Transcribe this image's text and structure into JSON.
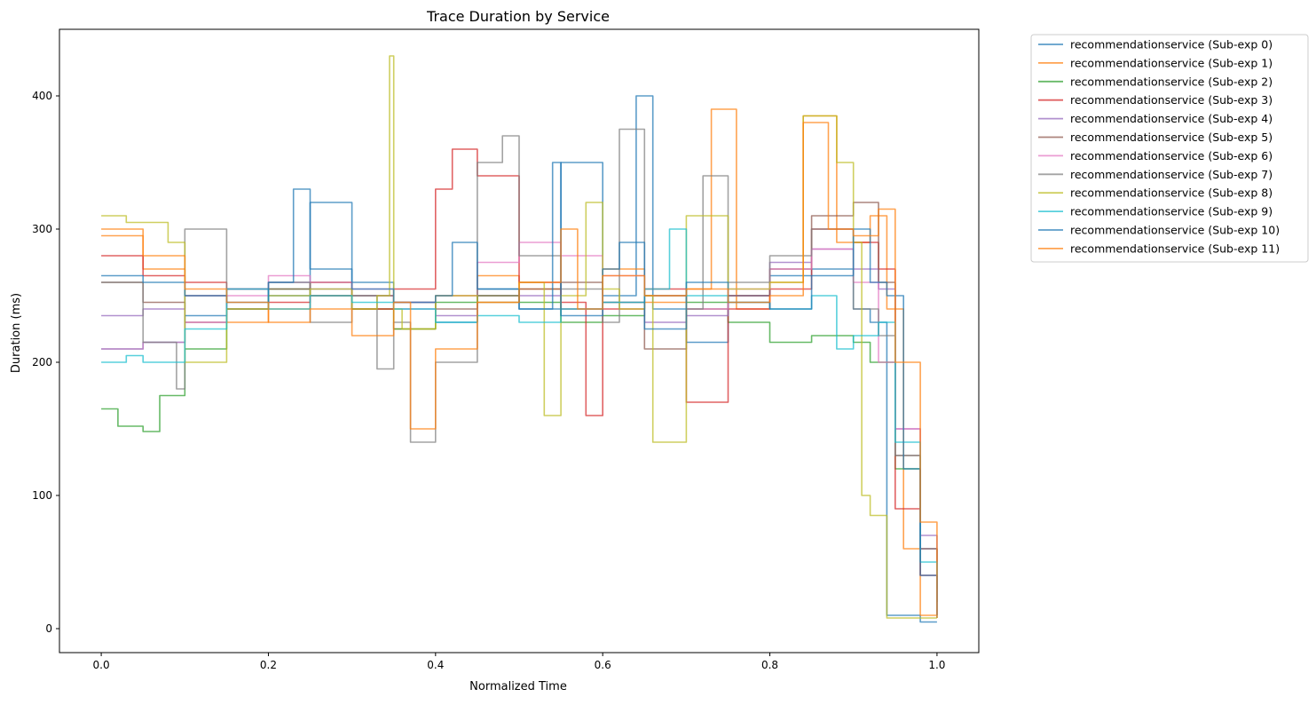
{
  "chart_data": {
    "type": "line",
    "title": "Trace Duration by Service",
    "xlabel": "Normalized Time",
    "ylabel": "Duration (ms)",
    "xlim": [
      -0.05,
      1.05
    ],
    "ylim": [
      -18,
      450
    ],
    "x_ticks": [
      0.0,
      0.2,
      0.4,
      0.6,
      0.8,
      1.0
    ],
    "x_tick_labels": [
      "0.0",
      "0.2",
      "0.4",
      "0.6",
      "0.8",
      "1.0"
    ],
    "y_ticks": [
      0,
      100,
      200,
      300,
      400
    ],
    "y_tick_labels": [
      "0",
      "100",
      "200",
      "300",
      "400"
    ],
    "grid": false,
    "legend_position": "outside-top-right",
    "series": [
      {
        "name": "recommendationservice (Sub-exp 0)",
        "color": "#1f77b4",
        "x": [
          0.0,
          0.05,
          0.1,
          0.15,
          0.2,
          0.25,
          0.3,
          0.35,
          0.4,
          0.45,
          0.5,
          0.55,
          0.6,
          0.64,
          0.66,
          0.7,
          0.75,
          0.8,
          0.85,
          0.9,
          0.92,
          0.94,
          0.96,
          0.98,
          1.0
        ],
        "y": [
          210,
          215,
          235,
          255,
          250,
          320,
          260,
          245,
          230,
          255,
          240,
          350,
          250,
          400,
          240,
          215,
          250,
          265,
          270,
          240,
          230,
          10,
          10,
          5,
          5
        ]
      },
      {
        "name": "recommendationservice (Sub-exp 1)",
        "color": "#ff7f0e",
        "x": [
          0.0,
          0.05,
          0.1,
          0.15,
          0.2,
          0.25,
          0.3,
          0.35,
          0.4,
          0.45,
          0.5,
          0.55,
          0.6,
          0.65,
          0.7,
          0.73,
          0.76,
          0.8,
          0.84,
          0.88,
          0.92,
          0.94,
          0.96,
          0.98,
          1.0
        ],
        "y": [
          300,
          270,
          250,
          230,
          240,
          260,
          240,
          225,
          250,
          265,
          255,
          240,
          270,
          245,
          255,
          390,
          240,
          260,
          385,
          290,
          310,
          240,
          60,
          10,
          8
        ]
      },
      {
        "name": "recommendationservice (Sub-exp 2)",
        "color": "#2ca02c",
        "x": [
          0.0,
          0.02,
          0.05,
          0.07,
          0.1,
          0.15,
          0.2,
          0.25,
          0.3,
          0.35,
          0.4,
          0.45,
          0.5,
          0.55,
          0.6,
          0.65,
          0.7,
          0.75,
          0.8,
          0.85,
          0.9,
          0.92,
          0.95,
          0.98,
          1.0
        ],
        "y": [
          165,
          152,
          148,
          175,
          210,
          240,
          255,
          250,
          240,
          225,
          245,
          250,
          245,
          230,
          235,
          250,
          245,
          230,
          215,
          220,
          215,
          200,
          120,
          60,
          20
        ]
      },
      {
        "name": "recommendationservice (Sub-exp 3)",
        "color": "#d62728",
        "x": [
          0.0,
          0.05,
          0.1,
          0.15,
          0.2,
          0.25,
          0.3,
          0.35,
          0.4,
          0.42,
          0.45,
          0.5,
          0.55,
          0.58,
          0.6,
          0.65,
          0.7,
          0.75,
          0.8,
          0.85,
          0.9,
          0.93,
          0.95,
          0.98,
          1.0
        ],
        "y": [
          280,
          265,
          260,
          255,
          245,
          250,
          240,
          255,
          330,
          360,
          340,
          260,
          245,
          160,
          240,
          255,
          170,
          240,
          255,
          300,
          290,
          270,
          90,
          40,
          10
        ]
      },
      {
        "name": "recommendationservice (Sub-exp 4)",
        "color": "#9467bd",
        "x": [
          0.0,
          0.05,
          0.1,
          0.15,
          0.2,
          0.25,
          0.3,
          0.35,
          0.4,
          0.45,
          0.5,
          0.55,
          0.6,
          0.65,
          0.7,
          0.75,
          0.8,
          0.85,
          0.9,
          0.93,
          0.95,
          0.98,
          1.0
        ],
        "y": [
          235,
          240,
          250,
          255,
          260,
          255,
          250,
          240,
          235,
          245,
          250,
          240,
          245,
          230,
          235,
          250,
          275,
          285,
          270,
          255,
          150,
          70,
          20
        ]
      },
      {
        "name": "recommendationservice (Sub-exp 5)",
        "color": "#8c564b",
        "x": [
          0.0,
          0.05,
          0.1,
          0.15,
          0.2,
          0.25,
          0.3,
          0.35,
          0.4,
          0.45,
          0.5,
          0.55,
          0.6,
          0.65,
          0.7,
          0.75,
          0.8,
          0.85,
          0.9,
          0.93,
          0.95,
          0.98,
          1.0
        ],
        "y": [
          260,
          245,
          230,
          240,
          255,
          260,
          250,
          245,
          240,
          250,
          255,
          260,
          245,
          210,
          240,
          250,
          270,
          310,
          320,
          260,
          130,
          60,
          50
        ]
      },
      {
        "name": "recommendationservice (Sub-exp 6)",
        "color": "#e377c2",
        "x": [
          0.0,
          0.05,
          0.1,
          0.15,
          0.2,
          0.25,
          0.3,
          0.35,
          0.4,
          0.45,
          0.5,
          0.55,
          0.6,
          0.65,
          0.7,
          0.75,
          0.8,
          0.85,
          0.9,
          0.93,
          0.95,
          0.98,
          1.0
        ],
        "y": [
          210,
          215,
          230,
          250,
          265,
          260,
          255,
          245,
          250,
          275,
          290,
          280,
          265,
          250,
          240,
          255,
          270,
          285,
          260,
          200,
          150,
          60,
          10
        ]
      },
      {
        "name": "recommendationservice (Sub-exp 7)",
        "color": "#7f7f7f",
        "x": [
          0.0,
          0.05,
          0.09,
          0.1,
          0.15,
          0.2,
          0.25,
          0.3,
          0.33,
          0.35,
          0.37,
          0.4,
          0.45,
          0.48,
          0.5,
          0.55,
          0.6,
          0.62,
          0.65,
          0.7,
          0.72,
          0.75,
          0.8,
          0.85,
          0.9,
          0.93,
          0.95,
          0.98,
          1.0
        ],
        "y": [
          260,
          215,
          180,
          300,
          240,
          260,
          230,
          250,
          195,
          230,
          140,
          200,
          350,
          370,
          280,
          255,
          230,
          375,
          250,
          240,
          340,
          260,
          280,
          300,
          240,
          220,
          130,
          60,
          30
        ]
      },
      {
        "name": "recommendationservice (Sub-exp 8)",
        "color": "#bcbd22",
        "x": [
          0.0,
          0.03,
          0.05,
          0.08,
          0.1,
          0.15,
          0.2,
          0.25,
          0.3,
          0.33,
          0.345,
          0.35,
          0.36,
          0.4,
          0.45,
          0.5,
          0.53,
          0.55,
          0.58,
          0.6,
          0.62,
          0.65,
          0.66,
          0.7,
          0.75,
          0.8,
          0.84,
          0.88,
          0.9,
          0.91,
          0.92,
          0.94,
          0.96,
          0.98,
          1.0
        ],
        "y": [
          310,
          305,
          305,
          290,
          200,
          240,
          250,
          255,
          240,
          250,
          430,
          240,
          225,
          250,
          245,
          260,
          160,
          250,
          320,
          255,
          240,
          250,
          140,
          310,
          255,
          260,
          385,
          350,
          290,
          100,
          85,
          8,
          8,
          8,
          8
        ]
      },
      {
        "name": "recommendationservice (Sub-exp 9)",
        "color": "#17becf",
        "x": [
          0.0,
          0.03,
          0.05,
          0.1,
          0.15,
          0.2,
          0.25,
          0.3,
          0.35,
          0.4,
          0.45,
          0.5,
          0.55,
          0.6,
          0.65,
          0.68,
          0.7,
          0.75,
          0.8,
          0.85,
          0.88,
          0.9,
          0.93,
          0.95,
          0.98,
          1.0
        ],
        "y": [
          200,
          205,
          200,
          225,
          255,
          240,
          250,
          245,
          240,
          230,
          235,
          230,
          240,
          245,
          255,
          300,
          250,
          245,
          240,
          250,
          210,
          220,
          230,
          140,
          50,
          8
        ]
      },
      {
        "name": "recommendationservice (Sub-exp 10)",
        "color": "#1f77b4",
        "x": [
          0.0,
          0.05,
          0.1,
          0.15,
          0.2,
          0.23,
          0.25,
          0.3,
          0.35,
          0.4,
          0.42,
          0.45,
          0.5,
          0.54,
          0.55,
          0.6,
          0.62,
          0.65,
          0.7,
          0.75,
          0.8,
          0.85,
          0.9,
          0.92,
          0.94,
          0.96,
          0.98,
          1.0
        ],
        "y": [
          265,
          260,
          250,
          245,
          260,
          330,
          270,
          255,
          245,
          250,
          290,
          255,
          240,
          350,
          235,
          270,
          290,
          225,
          260,
          245,
          240,
          265,
          300,
          260,
          250,
          120,
          40,
          10
        ]
      },
      {
        "name": "recommendationservice (Sub-exp 11)",
        "color": "#ff7f0e",
        "x": [
          0.0,
          0.05,
          0.1,
          0.15,
          0.2,
          0.25,
          0.3,
          0.35,
          0.37,
          0.4,
          0.45,
          0.5,
          0.55,
          0.57,
          0.6,
          0.65,
          0.7,
          0.75,
          0.8,
          0.84,
          0.87,
          0.9,
          0.93,
          0.95,
          0.98,
          1.0
        ],
        "y": [
          295,
          280,
          255,
          245,
          230,
          240,
          220,
          245,
          150,
          210,
          245,
          260,
          300,
          240,
          265,
          250,
          255,
          245,
          250,
          380,
          300,
          295,
          315,
          200,
          80,
          8
        ]
      }
    ]
  }
}
